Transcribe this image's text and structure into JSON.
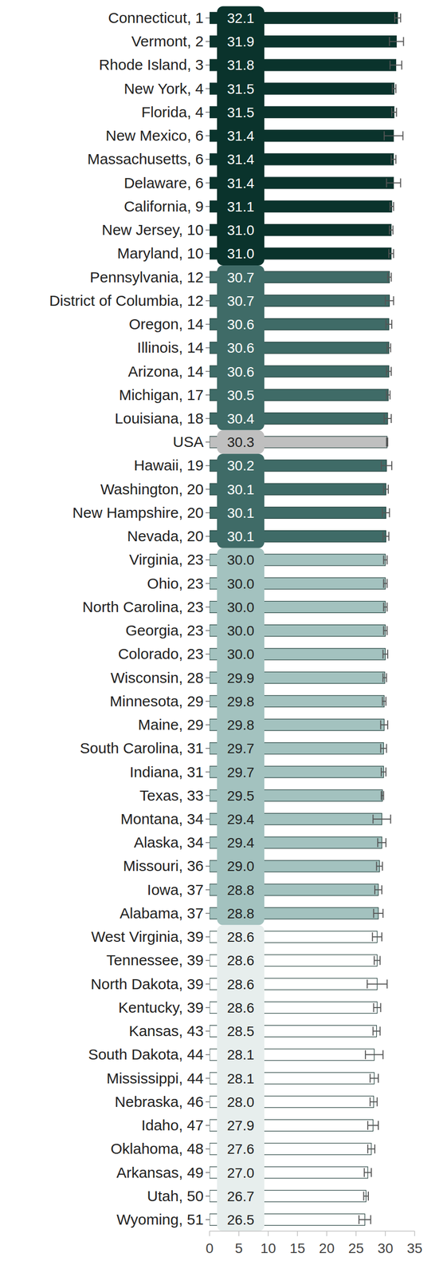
{
  "chart_data": {
    "type": "bar",
    "orientation": "horizontal",
    "data_labels": true,
    "categories": [
      "Connecticut, 1",
      "Vermont, 2",
      "Rhode Island, 3",
      "New York, 4",
      "Florida, 4",
      "New Mexico, 6",
      "Massachusetts, 6",
      "Delaware, 6",
      "California, 9",
      "New Jersey, 10",
      "Maryland, 10",
      "Pennsylvania, 12",
      "District of Columbia, 12",
      "Oregon, 14",
      "Illinois, 14",
      "Arizona, 14",
      "Michigan, 17",
      "Louisiana, 18",
      "USA",
      "Hawaii, 19",
      "Washington, 20",
      "New Hampshire, 20",
      "Nevada, 20",
      "Virginia, 23",
      "Ohio, 23",
      "North Carolina, 23",
      "Georgia, 23",
      "Colorado, 23",
      "Wisconsin, 28",
      "Minnesota, 29",
      "Maine, 29",
      "South Carolina, 31",
      "Indiana, 31",
      "Texas, 33",
      "Montana, 34",
      "Alaska, 34",
      "Missouri, 36",
      "Iowa, 37",
      "Alabama, 37",
      "West Virginia, 39",
      "Tennessee, 39",
      "North Dakota, 39",
      "Kentucky, 39",
      "Kansas, 43",
      "South Dakota, 44",
      "Mississippi, 44",
      "Nebraska, 46",
      "Idaho, 47",
      "Oklahoma, 48",
      "Arkansas, 49",
      "Utah, 50",
      "Wyoming, 51"
    ],
    "values": [
      32.1,
      31.9,
      31.8,
      31.5,
      31.5,
      31.4,
      31.4,
      31.4,
      31.1,
      31.0,
      31.0,
      30.7,
      30.7,
      30.6,
      30.6,
      30.6,
      30.5,
      30.4,
      30.3,
      30.2,
      30.1,
      30.1,
      30.1,
      30.0,
      30.0,
      30.0,
      30.0,
      30.0,
      29.9,
      29.8,
      29.8,
      29.7,
      29.7,
      29.5,
      29.4,
      29.4,
      29.0,
      28.8,
      28.8,
      28.6,
      28.6,
      28.6,
      28.6,
      28.5,
      28.1,
      28.1,
      28.0,
      27.9,
      27.6,
      27.0,
      26.7,
      26.5
    ],
    "value_labels": [
      "32.1",
      "31.9",
      "31.8",
      "31.5",
      "31.5",
      "31.4",
      "31.4",
      "31.4",
      "31.1",
      "31.0",
      "31.0",
      "30.7",
      "30.7",
      "30.6",
      "30.6",
      "30.6",
      "30.5",
      "30.4",
      "30.3",
      "30.2",
      "30.1",
      "30.1",
      "30.1",
      "30.0",
      "30.0",
      "30.0",
      "30.0",
      "30.0",
      "29.9",
      "29.8",
      "29.8",
      "29.7",
      "29.7",
      "29.5",
      "29.4",
      "29.4",
      "29.0",
      "28.8",
      "28.8",
      "28.6",
      "28.6",
      "28.6",
      "28.6",
      "28.5",
      "28.1",
      "28.1",
      "28.0",
      "27.9",
      "27.6",
      "27.0",
      "26.7",
      "26.5"
    ],
    "errors": [
      0.5,
      1.2,
      1.0,
      0.3,
      0.4,
      1.6,
      0.4,
      1.2,
      0.3,
      0.3,
      0.4,
      0.3,
      0.7,
      0.5,
      0.3,
      0.4,
      0.3,
      0.6,
      0.1,
      0.9,
      0.4,
      0.6,
      0.5,
      0.3,
      0.3,
      0.3,
      0.3,
      0.4,
      0.3,
      0.3,
      0.6,
      0.5,
      0.4,
      0.2,
      1.5,
      0.7,
      0.5,
      0.6,
      0.8,
      0.8,
      0.5,
      1.7,
      0.6,
      0.6,
      1.5,
      0.7,
      0.6,
      0.9,
      0.6,
      0.6,
      0.4,
      1.0
    ],
    "colors": [
      "#0a332c",
      "#0a332c",
      "#0a332c",
      "#0a332c",
      "#0a332c",
      "#0a332c",
      "#0a332c",
      "#0a332c",
      "#0a332c",
      "#0a332c",
      "#0a332c",
      "#3f6b67",
      "#3f6b67",
      "#3f6b67",
      "#3f6b67",
      "#3f6b67",
      "#3f6b67",
      "#3f6b67",
      "#bfbfbf",
      "#3f6b67",
      "#3f6b67",
      "#3f6b67",
      "#3f6b67",
      "#a3c2bf",
      "#a3c2bf",
      "#a3c2bf",
      "#a3c2bf",
      "#a3c2bf",
      "#a3c2bf",
      "#a3c2bf",
      "#a3c2bf",
      "#a3c2bf",
      "#a3c2bf",
      "#a3c2bf",
      "#a3c2bf",
      "#a3c2bf",
      "#a3c2bf",
      "#a3c2bf",
      "#a3c2bf",
      "#ffffff",
      "#ffffff",
      "#ffffff",
      "#ffffff",
      "#ffffff",
      "#ffffff",
      "#ffffff",
      "#ffffff",
      "#ffffff",
      "#ffffff",
      "#ffffff",
      "#ffffff",
      "#ffffff"
    ],
    "xlim": [
      0,
      35
    ],
    "xticks": [
      0,
      5,
      10,
      15,
      20,
      25,
      30,
      35
    ]
  }
}
